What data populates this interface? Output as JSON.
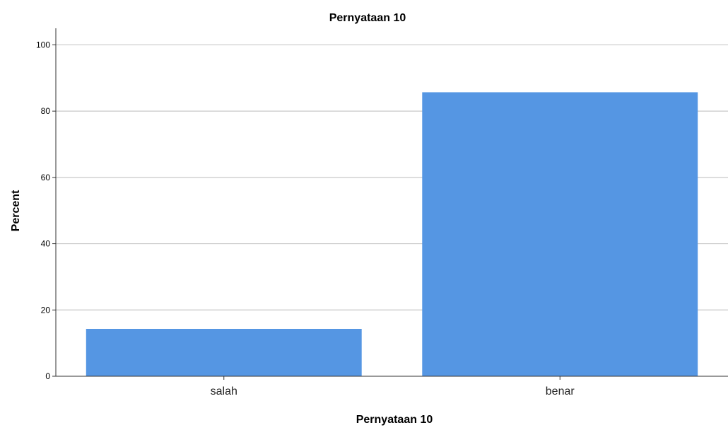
{
  "chart_data": {
    "type": "bar",
    "title": "Pernyataan 10",
    "xlabel": "Pernyataan 10",
    "ylabel": "Percent",
    "categories": [
      "salah",
      "benar"
    ],
    "values": [
      14.3,
      85.7
    ],
    "ylim": [
      0,
      105
    ],
    "yticks": [
      0,
      20,
      40,
      60,
      80,
      100
    ],
    "grid": true,
    "bar_color": "#5596e3"
  }
}
